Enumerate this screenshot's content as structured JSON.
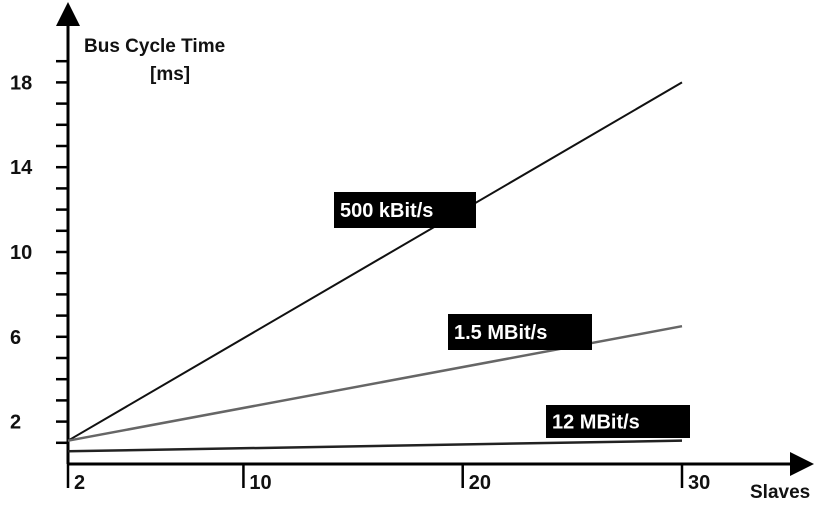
{
  "chart_data": {
    "type": "line",
    "ylabel": "Bus Cycle Time",
    "yunit": "[ms]",
    "xlabel": "Slaves",
    "x_ticks": [
      2,
      10,
      20,
      30
    ],
    "y_ticks": [
      2,
      6,
      10,
      14,
      18
    ],
    "xlim": [
      2,
      30
    ],
    "ylim": [
      0,
      20
    ],
    "grid": false,
    "series": [
      {
        "name": "500 kBit/s",
        "x": [
          2,
          30
        ],
        "y": [
          1.1,
          18
        ],
        "color": "#111111"
      },
      {
        "name": "1.5 MBit/s",
        "x": [
          2,
          30
        ],
        "y": [
          1.1,
          6.5
        ],
        "color": "#666666"
      },
      {
        "name": "12 MBit/s",
        "x": [
          2,
          30
        ],
        "y": [
          0.6,
          1.1
        ],
        "color": "#222222"
      }
    ]
  }
}
